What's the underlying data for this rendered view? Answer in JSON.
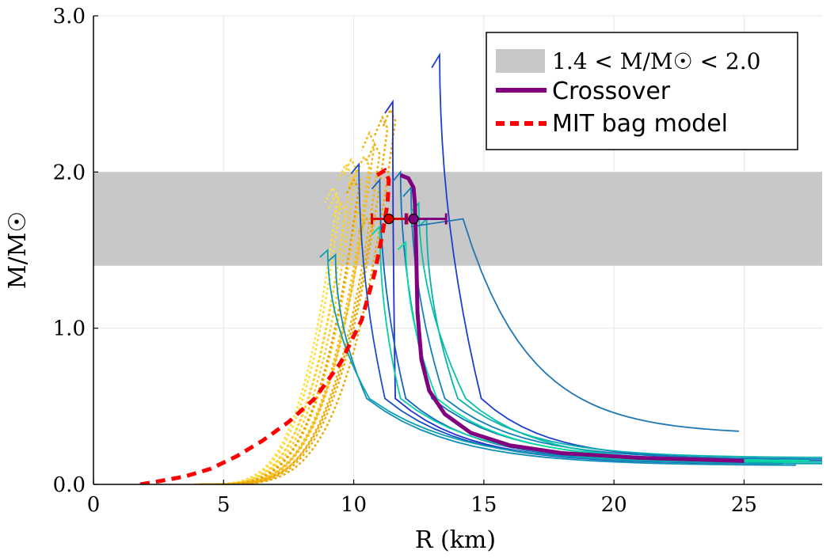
{
  "chart_data": {
    "type": "line",
    "title": "",
    "xlabel": "R (km)",
    "ylabel": "M/M☉",
    "xlim": [
      0,
      28
    ],
    "ylim": [
      0,
      3.0
    ],
    "xticks": [
      0,
      5,
      10,
      15,
      20,
      25
    ],
    "xtick_labels": [
      "0",
      "5",
      "10",
      "15",
      "20",
      "25"
    ],
    "yticks": [
      0,
      1,
      2,
      3
    ],
    "ytick_labels": [
      "0.0",
      "1.0",
      "2.0",
      "3.0"
    ],
    "grid": true,
    "legend_position": "top-right",
    "band": {
      "label": "1.4 < M/M☉ < 2.0",
      "y0": 1.4,
      "y1": 2.0,
      "color": "#c8c8c8"
    },
    "legend": [
      {
        "label": "1.4 < M/M☉ < 2.0",
        "kind": "band",
        "color": "#c8c8c8"
      },
      {
        "label": "Crossover",
        "kind": "solid",
        "color": "#800080"
      },
      {
        "label": "MIT bag model",
        "kind": "dashed",
        "color": "#ff0000"
      }
    ],
    "crossover_curve": {
      "color": "#800080",
      "points": [
        [
          25.0,
          0.15
        ],
        [
          21.0,
          0.17
        ],
        [
          18.0,
          0.2
        ],
        [
          16.0,
          0.25
        ],
        [
          14.5,
          0.33
        ],
        [
          13.5,
          0.45
        ],
        [
          12.9,
          0.6
        ],
        [
          12.6,
          0.8
        ],
        [
          12.45,
          1.1
        ],
        [
          12.4,
          1.5
        ],
        [
          12.35,
          1.8
        ],
        [
          12.3,
          1.9
        ],
        [
          12.1,
          1.96
        ],
        [
          11.8,
          1.98
        ]
      ]
    },
    "mit_bag_curve": {
      "color": "#ff0000",
      "points": [
        [
          1.8,
          0.0
        ],
        [
          2.5,
          0.02
        ],
        [
          3.5,
          0.05
        ],
        [
          4.5,
          0.1
        ],
        [
          5.5,
          0.18
        ],
        [
          6.5,
          0.28
        ],
        [
          7.5,
          0.4
        ],
        [
          8.5,
          0.55
        ],
        [
          9.5,
          0.78
        ],
        [
          10.3,
          1.05
        ],
        [
          10.8,
          1.35
        ],
        [
          11.1,
          1.6
        ],
        [
          11.3,
          1.8
        ],
        [
          11.35,
          1.95
        ],
        [
          11.2,
          2.01
        ],
        [
          10.9,
          1.98
        ]
      ]
    },
    "error_bars": [
      {
        "name": "MIT bag model",
        "color": "#dd0000",
        "x": 11.35,
        "y": 1.7,
        "xerr_low": 0.65,
        "xerr_high": 0.7
      },
      {
        "name": "Crossover",
        "color": "#800080",
        "x": 12.3,
        "y": 1.7,
        "xerr_low": 0.3,
        "xerr_high": 1.25
      }
    ],
    "bag_family": {
      "color_range": [
        "#ffe040",
        "#e8a000"
      ],
      "curves": [
        {
          "rmax": 9.3,
          "mmax": 1.9
        },
        {
          "rmax": 9.4,
          "mmax": 1.85
        },
        {
          "rmax": 9.6,
          "mmax": 1.8
        },
        {
          "rmax": 9.8,
          "mmax": 2.05
        },
        {
          "rmax": 10.0,
          "mmax": 2.08
        },
        {
          "rmax": 10.2,
          "mmax": 2.0
        },
        {
          "rmax": 10.3,
          "mmax": 1.75
        },
        {
          "rmax": 10.5,
          "mmax": 2.1
        },
        {
          "rmax": 10.7,
          "mmax": 2.25
        },
        {
          "rmax": 10.9,
          "mmax": 2.18
        },
        {
          "rmax": 11.2,
          "mmax": 2.35
        },
        {
          "rmax": 11.5,
          "mmax": 2.4
        },
        {
          "rmax": 10.6,
          "mmax": 1.7
        },
        {
          "rmax": 10.1,
          "mmax": 1.95
        }
      ]
    },
    "crossover_family": {
      "color_range": [
        "#1f30d0",
        "#00e0a0"
      ],
      "curves": [
        {
          "rmax": 11.5,
          "mmax": 2.45,
          "rdrop": 11.6,
          "rend": 25.5,
          "mtail": 0.14
        },
        {
          "rmax": 13.3,
          "mmax": 2.75,
          "rdrop": 14.9,
          "rend": 27.5,
          "mtail": 0.16
        },
        {
          "rmax": 10.2,
          "mmax": 2.05,
          "rdrop": 11.2,
          "rend": 26.5,
          "mtail": 0.13
        },
        {
          "rmax": 11.0,
          "mmax": 1.95,
          "rdrop": 12.0,
          "rend": 26.0,
          "mtail": 0.14
        },
        {
          "rmax": 11.8,
          "mmax": 2.0,
          "rdrop": 13.0,
          "rend": 28.0,
          "mtail": 0.15
        },
        {
          "rmax": 12.2,
          "mmax": 1.9,
          "rdrop": 13.5,
          "rend": 28.0,
          "mtail": 0.16
        },
        {
          "rmax": 9.3,
          "mmax": 1.47,
          "rdrop": 10.5,
          "rend": 27.0,
          "mtail": 0.12
        },
        {
          "rmax": 9.0,
          "mmax": 1.5,
          "rdrop": 10.6,
          "rend": 28.0,
          "mtail": 0.13
        },
        {
          "rmax": 12.8,
          "mmax": 1.7,
          "rdrop": 14.0,
          "rend": 28.0,
          "mtail": 0.17
        },
        {
          "rmax": 12.5,
          "mmax": 1.8,
          "rdrop": 14.3,
          "rend": 28.0,
          "mtail": 0.14
        },
        {
          "rmax": 11.0,
          "mmax": 1.65,
          "rdrop": 11.8,
          "rend": 27.0,
          "mtail": 0.14
        },
        {
          "rmax": 12.0,
          "mmax": 1.55,
          "rdrop": 13.2,
          "rend": 27.5,
          "mtail": 0.15
        }
      ],
      "special": {
        "rmax": 14.2,
        "mmax": 1.7,
        "rend": 24.8,
        "mtail": 0.32,
        "color": "#1f77b4"
      }
    }
  }
}
